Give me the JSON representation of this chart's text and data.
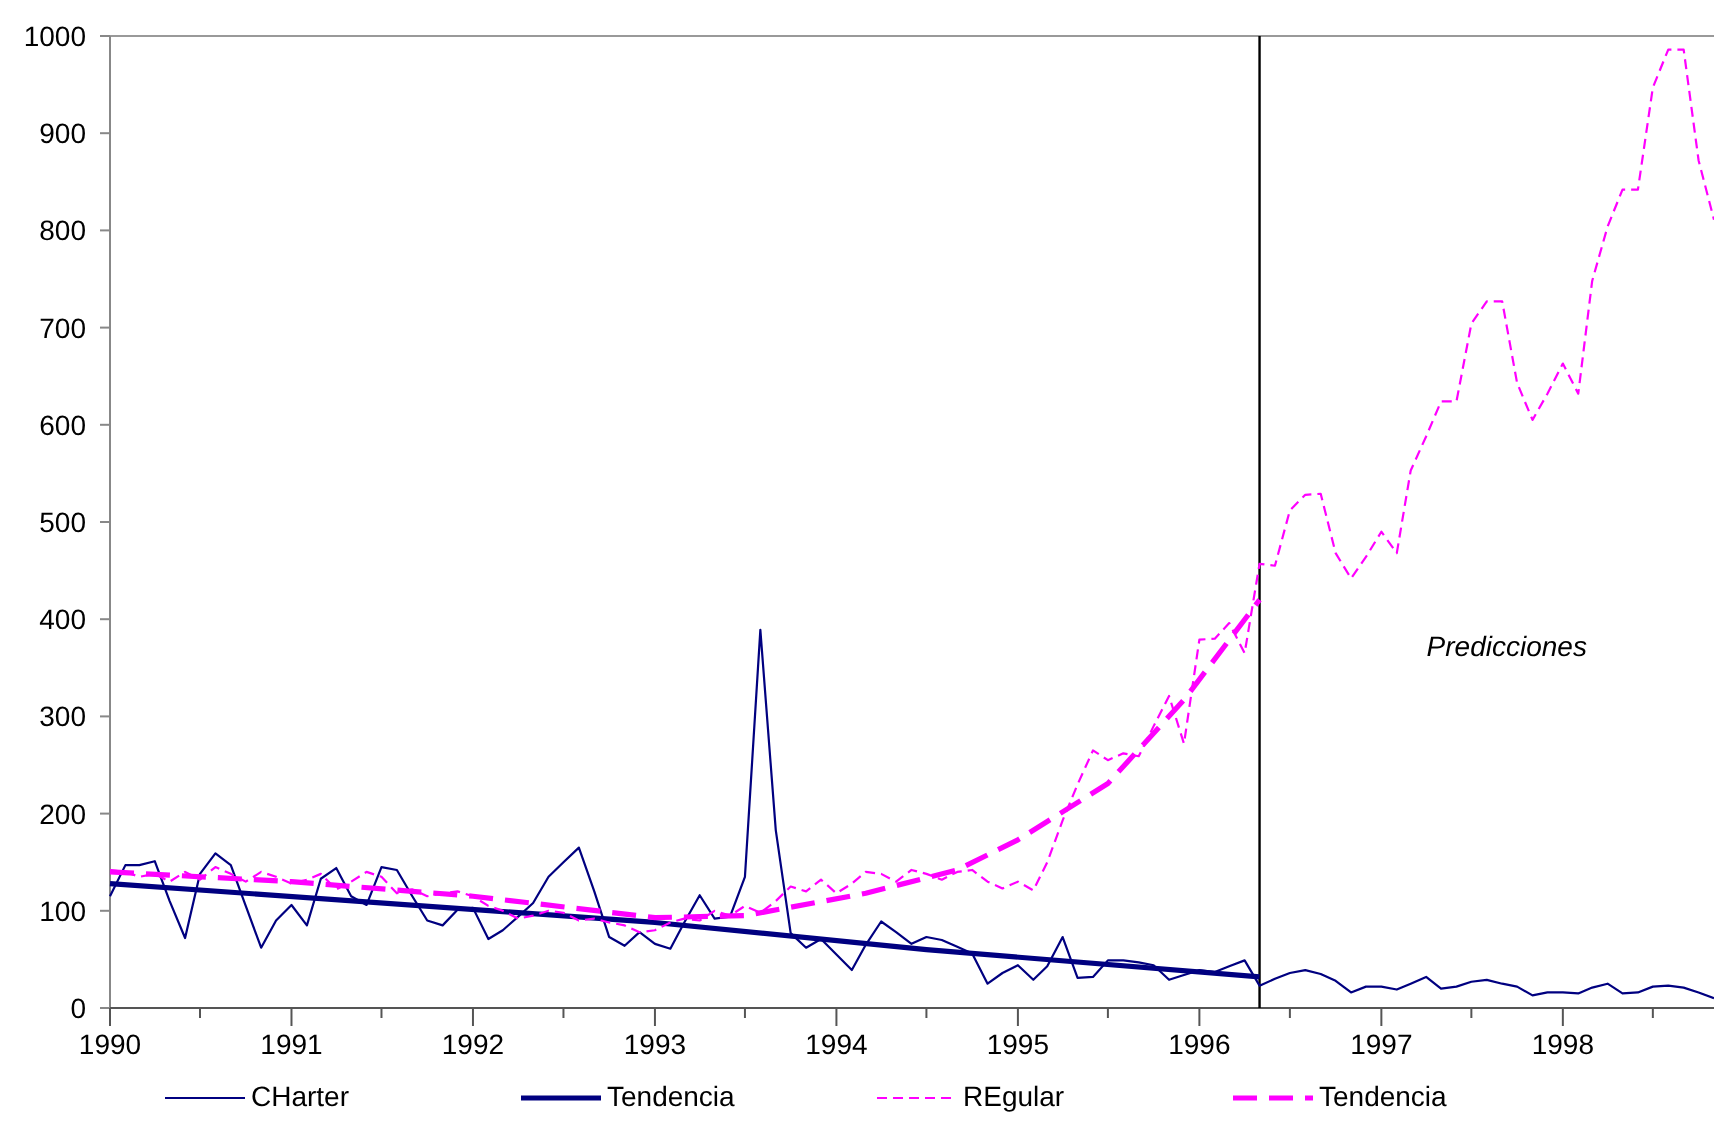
{
  "chart_data": {
    "type": "line",
    "x": [
      "1990-01",
      "1990-02",
      "1990-03",
      "1990-04",
      "1990-05",
      "1990-06",
      "1990-07",
      "1990-08",
      "1990-09",
      "1990-10",
      "1990-11",
      "1990-12",
      "1991-01",
      "1991-02",
      "1991-03",
      "1991-04",
      "1991-05",
      "1991-06",
      "1991-07",
      "1991-08",
      "1991-09",
      "1991-10",
      "1991-11",
      "1991-12",
      "1992-01",
      "1992-02",
      "1992-03",
      "1992-04",
      "1992-05",
      "1992-06",
      "1992-07",
      "1992-08",
      "1992-09",
      "1992-10",
      "1992-11",
      "1992-12",
      "1993-01",
      "1993-02",
      "1993-03",
      "1993-04",
      "1993-05",
      "1993-06",
      "1993-07",
      "1993-08",
      "1993-09",
      "1993-10",
      "1993-11",
      "1993-12",
      "1994-01",
      "1994-02",
      "1994-03",
      "1994-04",
      "1994-05",
      "1994-06",
      "1994-07",
      "1994-08",
      "1994-09",
      "1994-10",
      "1994-11",
      "1994-12",
      "1995-01",
      "1995-02",
      "1995-03",
      "1995-04",
      "1995-05",
      "1995-06",
      "1995-07",
      "1995-08",
      "1995-09",
      "1995-10",
      "1995-11",
      "1995-12",
      "1996-01",
      "1996-02",
      "1996-03",
      "1996-04",
      "1996-05",
      "1996-06",
      "1996-07",
      "1996-08",
      "1996-09",
      "1996-10",
      "1996-11",
      "1996-12",
      "1997-01",
      "1997-02",
      "1997-03",
      "1997-04",
      "1997-05",
      "1997-06",
      "1997-07",
      "1997-08",
      "1997-09",
      "1997-10",
      "1997-11",
      "1997-12",
      "1998-01",
      "1998-02",
      "1998-03",
      "1998-04",
      "1998-05",
      "1998-06",
      "1998-07",
      "1998-08",
      "1998-09",
      "1998-10",
      "1998-11"
    ],
    "series": [
      {
        "name": "CHarter",
        "color": "#000080",
        "line_style": "solid",
        "values": [
          115,
          147,
          147,
          151,
          110,
          72,
          138,
          159,
          147,
          105,
          62,
          90,
          106,
          85,
          133,
          144,
          115,
          106,
          145,
          142,
          115,
          90,
          85,
          101,
          103,
          71,
          80,
          94,
          108,
          135,
          150,
          165,
          120,
          73,
          64,
          78,
          66,
          61,
          88,
          116,
          92,
          94,
          135,
          389,
          183,
          77,
          62,
          71,
          55,
          39,
          65,
          89,
          78,
          66,
          73,
          70,
          63,
          56,
          25,
          36,
          44,
          29,
          43,
          73,
          31,
          32,
          49,
          49,
          47,
          44,
          29,
          34,
          39,
          37,
          43,
          49,
          23,
          30,
          36,
          39,
          35,
          28,
          16,
          22,
          22,
          19,
          25,
          32,
          20,
          22,
          27,
          29,
          25,
          22,
          13,
          16,
          16,
          15,
          21,
          25,
          15,
          16,
          22,
          23,
          21,
          16,
          10
        ]
      },
      {
        "name": "Tendencia",
        "color": "#000080",
        "line_style": "solid",
        "x": [
          "1990-01",
          "1993-01",
          "1994-07",
          "1996-05"
        ],
        "values": [
          128,
          88,
          60,
          32
        ]
      },
      {
        "name": "REgular",
        "color": "#ff00ff",
        "line_style": "dashed",
        "values": [
          142,
          140,
          135,
          138,
          130,
          140,
          132,
          145,
          138,
          130,
          140,
          135,
          128,
          132,
          138,
          122,
          130,
          140,
          135,
          118,
          122,
          115,
          118,
          120,
          115,
          105,
          100,
          92,
          95,
          100,
          98,
          90,
          92,
          88,
          85,
          78,
          80,
          88,
          92,
          90,
          100,
          95,
          105,
          98,
          110,
          125,
          120,
          132,
          118,
          128,
          140,
          138,
          130,
          142,
          138,
          132,
          140,
          142,
          130,
          123,
          130,
          121,
          150,
          193,
          230,
          265,
          255,
          262,
          259,
          290,
          321,
          272,
          379,
          380,
          396,
          365,
          457,
          455,
          512,
          528,
          529,
          468,
          442,
          464,
          490,
          468,
          553,
          588,
          624,
          624,
          704,
          727,
          727,
          643,
          605,
          632,
          663,
          632,
          748,
          804,
          842,
          842,
          947,
          986,
          986,
          872,
          811
        ]
      },
      {
        "name": "Tendencia",
        "color": "#ff00ff",
        "line_style": "dashed",
        "x": [
          "1990-01",
          "1991-01",
          "1992-01",
          "1993-01",
          "1993-07",
          "1994-03",
          "1994-09",
          "1995-01",
          "1995-07",
          "1995-12",
          "1996-05"
        ],
        "values": [
          140,
          130,
          115,
          93,
          95,
          118,
          142,
          173,
          231,
          317,
          420
        ]
      }
    ],
    "xlim": [
      "1990-01",
      "1998-11"
    ],
    "xticks": [
      {
        "value": "1990-01",
        "label": "1990"
      },
      {
        "value": "1990-07",
        "label": null
      },
      {
        "value": "1991-01",
        "label": "1991"
      },
      {
        "value": "1991-07",
        "label": null
      },
      {
        "value": "1992-01",
        "label": "1992"
      },
      {
        "value": "1992-07",
        "label": null
      },
      {
        "value": "1993-01",
        "label": "1993"
      },
      {
        "value": "1993-07",
        "label": null
      },
      {
        "value": "1994-01",
        "label": "1994"
      },
      {
        "value": "1994-07",
        "label": null
      },
      {
        "value": "1995-01",
        "label": "1995"
      },
      {
        "value": "1995-07",
        "label": null
      },
      {
        "value": "1996-01",
        "label": "1996"
      },
      {
        "value": "1996-07",
        "label": null
      },
      {
        "value": "1997-01",
        "label": "1997"
      },
      {
        "value": "1997-07",
        "label": null
      },
      {
        "value": "1998-01",
        "label": "1998"
      },
      {
        "value": "1998-07",
        "label": null
      }
    ],
    "ylim": [
      0,
      1000
    ],
    "yticks": [
      0,
      100,
      200,
      300,
      400,
      500,
      600,
      700,
      800,
      900,
      1000
    ],
    "ref_lines": [
      {
        "axis": "x",
        "value": "1996-05",
        "color": "#000000"
      }
    ],
    "annotations": [
      "Predicciones"
    ],
    "legend": "bottom",
    "grid": false,
    "marker": "none"
  }
}
